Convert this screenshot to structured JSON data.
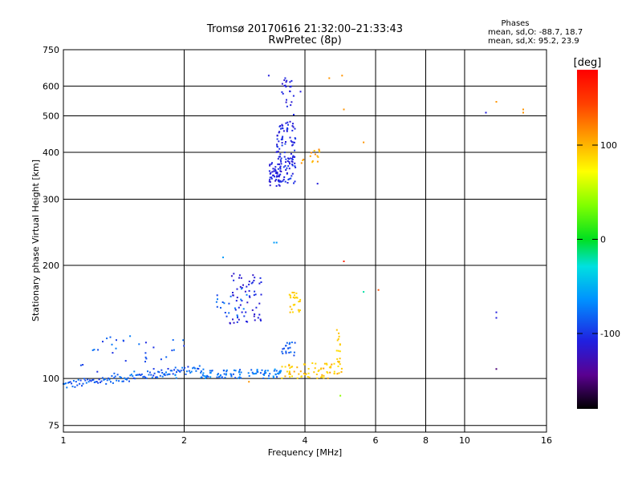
{
  "chart_data": {
    "type": "scatter",
    "title": "Tromsø 20170616 21:32:00–21:33:43",
    "subtitle": "RwPretec (8p)",
    "xlabel": "Frequency [MHz]",
    "ylabel": "Stationary phase Virtual Height [km]",
    "x_scale": "log",
    "y_scale": "log",
    "xlim": [
      1,
      16
    ],
    "ylim": [
      72,
      750
    ],
    "x_ticks": [
      {
        "value": 1,
        "label": "1"
      },
      {
        "value": 2,
        "label": "2"
      },
      {
        "value": 4,
        "label": "4"
      },
      {
        "value": 6,
        "label": "6"
      },
      {
        "value": 8,
        "label": "8"
      },
      {
        "value": 10,
        "label": "10"
      },
      {
        "value": 16,
        "label": "16"
      }
    ],
    "y_ticks": [
      {
        "value": 75,
        "label": "75"
      },
      {
        "value": 100,
        "label": "100"
      },
      {
        "value": 200,
        "label": "200"
      },
      {
        "value": 300,
        "label": "300"
      },
      {
        "value": 400,
        "label": "400"
      },
      {
        "value": 500,
        "label": "500"
      },
      {
        "value": 600,
        "label": "600"
      },
      {
        "value": 750,
        "label": "750"
      }
    ],
    "grid": true,
    "phase_stats": {
      "title": "Phases",
      "o_line": "mean, sd,O: -88.7, 18.7",
      "x_line": "mean, sd,X:  95.2, 23.9"
    },
    "colorbar": {
      "label": "[deg]",
      "range": [
        -180,
        180
      ],
      "ticks": [
        {
          "value": 100,
          "label": "100"
        },
        {
          "value": 0,
          "label": "0"
        },
        {
          "value": -100,
          "label": "-100"
        }
      ]
    },
    "clusters": [
      {
        "name_hint": "E-trace",
        "f": [
          1.0,
          2.2
        ],
        "h": [
          96,
          106
        ],
        "phase": [
          -100,
          -70
        ],
        "n": 120,
        "rel": "linear_rise"
      },
      {
        "name_hint": "E-trace-2",
        "f": [
          2.2,
          3.5
        ],
        "h": [
          100,
          106
        ],
        "phase": [
          -90,
          -60
        ],
        "n": 90,
        "rel": "flat"
      },
      {
        "name_hint": "Es-scatter",
        "f": [
          1.1,
          2.0
        ],
        "h": [
          100,
          130
        ],
        "phase": [
          -110,
          -70
        ],
        "n": 40,
        "rel": "random"
      },
      {
        "name_hint": "E-high",
        "f": [
          2.6,
          3.15
        ],
        "h": [
          140,
          195
        ],
        "phase": [
          -120,
          -100
        ],
        "n": 60,
        "rel": "random"
      },
      {
        "name_hint": "E-high-2",
        "f": [
          2.4,
          2.9
        ],
        "h": [
          140,
          175
        ],
        "phase": [
          -100,
          -70
        ],
        "n": 20,
        "rel": "random"
      },
      {
        "name_hint": "F-cluster",
        "f": [
          3.25,
          3.5
        ],
        "h": [
          325,
          375
        ],
        "phase": [
          -120,
          -100
        ],
        "n": 50,
        "rel": "random"
      },
      {
        "name_hint": "F-trace",
        "f": [
          3.4,
          3.8
        ],
        "h": [
          330,
          480
        ],
        "phase": [
          -115,
          -95
        ],
        "n": 110,
        "rel": "random"
      },
      {
        "name_hint": "F-top",
        "f": [
          3.5,
          3.75
        ],
        "h": [
          480,
          640
        ],
        "phase": [
          -120,
          -100
        ],
        "n": 25,
        "rel": "random"
      },
      {
        "name_hint": "X-low",
        "f": [
          3.5,
          4.95
        ],
        "h": [
          100,
          110
        ],
        "phase": [
          85,
          120
        ],
        "n": 70,
        "rel": "random"
      },
      {
        "name_hint": "X-mid",
        "f": [
          3.65,
          3.9
        ],
        "h": [
          150,
          170
        ],
        "phase": [
          90,
          110
        ],
        "n": 25,
        "rel": "random"
      },
      {
        "name_hint": "X-col",
        "f": [
          4.8,
          4.9
        ],
        "h": [
          110,
          135
        ],
        "phase": [
          90,
          110
        ],
        "n": 15,
        "rel": "random"
      },
      {
        "name_hint": "O-mid",
        "f": [
          3.5,
          3.8
        ],
        "h": [
          115,
          125
        ],
        "phase": [
          -95,
          -75
        ],
        "n": 20,
        "rel": "random"
      },
      {
        "name_hint": "X-F",
        "f": [
          3.9,
          4.4
        ],
        "h": [
          370,
          410
        ],
        "phase": [
          95,
          130
        ],
        "n": 15,
        "rel": "random"
      }
    ],
    "extra_points": [
      {
        "f": 12.0,
        "h": 545,
        "phase": 120
      },
      {
        "f": 14.0,
        "h": 520,
        "phase": 120
      },
      {
        "f": 14.0,
        "h": 510,
        "phase": 120
      },
      {
        "f": 11.3,
        "h": 510,
        "phase": -110
      },
      {
        "f": 12.0,
        "h": 150,
        "phase": -110
      },
      {
        "f": 12.0,
        "h": 145,
        "phase": -110
      },
      {
        "f": 12.0,
        "h": 106,
        "phase": -150
      },
      {
        "f": 4.3,
        "h": 330,
        "phase": -110
      },
      {
        "f": 4.95,
        "h": 640,
        "phase": 120
      },
      {
        "f": 4.6,
        "h": 630,
        "phase": 120
      },
      {
        "f": 5.6,
        "h": 425,
        "phase": 120
      },
      {
        "f": 5.0,
        "h": 205,
        "phase": 160
      },
      {
        "f": 6.1,
        "h": 172,
        "phase": 140
      },
      {
        "f": 5.6,
        "h": 170,
        "phase": -20
      },
      {
        "f": 4.9,
        "h": 90,
        "phase": 40
      },
      {
        "f": 2.5,
        "h": 210,
        "phase": -60
      },
      {
        "f": 3.25,
        "h": 640,
        "phase": -110
      },
      {
        "f": 3.9,
        "h": 580,
        "phase": -110
      },
      {
        "f": 5.0,
        "h": 520,
        "phase": 120
      },
      {
        "f": 3.35,
        "h": 230,
        "phase": -60
      },
      {
        "f": 3.4,
        "h": 230,
        "phase": -60
      },
      {
        "f": 1.9,
        "h": 102,
        "phase": -60
      },
      {
        "f": 2.9,
        "h": 98,
        "phase": 120
      }
    ]
  }
}
